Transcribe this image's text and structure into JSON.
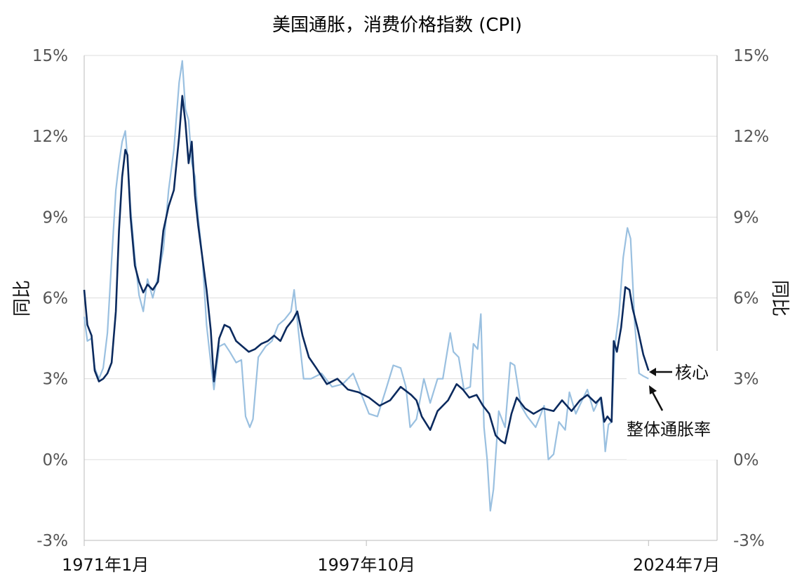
{
  "chart_data": {
    "type": "line",
    "title": "美国通胀，消费价格指数 (CPI)",
    "ylabel_left": "同比",
    "ylabel_right": "同比",
    "ylim": [
      -3,
      15
    ],
    "yticks": [
      "15%",
      "12%",
      "9%",
      "6%",
      "3%",
      "0%",
      "-3%"
    ],
    "ytick_values": [
      15,
      12,
      9,
      6,
      3,
      0,
      -3
    ],
    "xlim": [
      1971.0,
      2031.0
    ],
    "xticks": [
      {
        "label": "1971年1月",
        "value": 1971.0
      },
      {
        "label": "1997年10月",
        "value": 1997.75
      },
      {
        "label": "2024年7月",
        "value": 2024.5
      }
    ],
    "grid": "horizontal",
    "colors": {
      "core": "#0b2a5e",
      "headline": "#9ac0e0",
      "grid": "#dddddd",
      "axis": "#bbbbbb"
    },
    "annotations": [
      {
        "text": "核心",
        "series": "core"
      },
      {
        "text": "整体通胀率",
        "series": "headline"
      }
    ],
    "series": [
      {
        "name": "核心",
        "color": "#0b2a5e",
        "x": [
          1971.0,
          1971.3,
          1971.7,
          1972.0,
          1972.4,
          1972.8,
          1973.2,
          1973.6,
          1974.0,
          1974.3,
          1974.6,
          1974.9,
          1975.1,
          1975.4,
          1975.8,
          1976.2,
          1976.6,
          1977.0,
          1977.5,
          1978.0,
          1978.5,
          1979.0,
          1979.5,
          1980.0,
          1980.3,
          1980.6,
          1980.9,
          1981.2,
          1981.5,
          1981.8,
          1982.2,
          1982.6,
          1983.0,
          1983.3,
          1983.8,
          1984.3,
          1984.8,
          1985.4,
          1986.0,
          1986.6,
          1987.2,
          1987.8,
          1988.4,
          1989.0,
          1989.6,
          1990.2,
          1990.8,
          1991.2,
          1991.7,
          1992.3,
          1993.0,
          1994.0,
          1995.0,
          1996.0,
          1997.0,
          1998.0,
          1999.0,
          2000.0,
          2001.0,
          2002.0,
          2002.5,
          2003.0,
          2003.8,
          2004.5,
          2005.5,
          2006.3,
          2006.9,
          2007.5,
          2008.2,
          2008.8,
          2009.4,
          2010.0,
          2010.5,
          2010.9,
          2011.5,
          2012.0,
          2012.8,
          2013.6,
          2014.5,
          2015.5,
          2016.3,
          2017.2,
          2018.0,
          2018.7,
          2019.5,
          2020.0,
          2020.3,
          2020.6,
          2021.0,
          2021.2,
          2021.5,
          2021.9,
          2022.3,
          2022.7,
          2023.0,
          2023.5,
          2024.0,
          2024.5
        ],
        "y": [
          6.3,
          5.0,
          4.6,
          3.3,
          2.9,
          3.0,
          3.2,
          3.6,
          5.5,
          8.5,
          10.5,
          11.5,
          11.3,
          9.0,
          7.2,
          6.6,
          6.2,
          6.5,
          6.3,
          6.6,
          8.5,
          9.4,
          10.0,
          12.0,
          13.5,
          12.5,
          11.0,
          11.8,
          9.8,
          8.7,
          7.5,
          6.3,
          4.8,
          2.9,
          4.5,
          5.0,
          4.9,
          4.4,
          4.2,
          4.0,
          4.1,
          4.3,
          4.4,
          4.6,
          4.4,
          4.9,
          5.2,
          5.5,
          4.6,
          3.8,
          3.4,
          2.8,
          3.0,
          2.6,
          2.5,
          2.3,
          2.0,
          2.2,
          2.7,
          2.4,
          2.2,
          1.6,
          1.1,
          1.8,
          2.2,
          2.8,
          2.6,
          2.3,
          2.4,
          2.0,
          1.7,
          0.9,
          0.7,
          0.6,
          1.7,
          2.3,
          1.9,
          1.7,
          1.9,
          1.8,
          2.2,
          1.8,
          2.2,
          2.4,
          2.1,
          2.3,
          1.4,
          1.6,
          1.4,
          4.4,
          4.0,
          4.9,
          6.4,
          6.3,
          5.6,
          4.8,
          3.9,
          3.3
        ]
      },
      {
        "name": "整体通胀率",
        "color": "#9ac0e0",
        "x": [
          1971.0,
          1971.3,
          1971.7,
          1972.0,
          1972.4,
          1972.8,
          1973.2,
          1973.6,
          1974.0,
          1974.3,
          1974.6,
          1974.9,
          1975.1,
          1975.4,
          1975.8,
          1976.2,
          1976.6,
          1977.0,
          1977.5,
          1978.0,
          1978.5,
          1979.0,
          1979.5,
          1980.0,
          1980.3,
          1980.6,
          1980.9,
          1981.2,
          1981.5,
          1981.8,
          1982.2,
          1982.6,
          1983.0,
          1983.3,
          1983.8,
          1984.3,
          1984.8,
          1985.4,
          1985.9,
          1986.3,
          1986.7,
          1987.0,
          1987.5,
          1988.2,
          1988.8,
          1989.4,
          1990.0,
          1990.6,
          1990.9,
          1991.3,
          1991.8,
          1992.5,
          1993.5,
          1994.5,
          1995.5,
          1996.5,
          1997.3,
          1998.0,
          1998.8,
          1999.6,
          2000.3,
          2001.0,
          2001.5,
          2001.9,
          2002.5,
          2003.2,
          2003.8,
          2004.5,
          2005.0,
          2005.7,
          2006.0,
          2006.5,
          2007.0,
          2007.6,
          2007.9,
          2008.3,
          2008.6,
          2008.9,
          2009.2,
          2009.5,
          2009.8,
          2010.3,
          2010.9,
          2011.4,
          2011.8,
          2012.4,
          2013.0,
          2013.8,
          2014.6,
          2015.0,
          2015.5,
          2016.0,
          2016.6,
          2017.0,
          2017.6,
          2018.2,
          2018.7,
          2019.3,
          2019.9,
          2020.2,
          2020.4,
          2020.7,
          2021.0,
          2021.3,
          2021.7,
          2022.1,
          2022.5,
          2022.8,
          2023.2,
          2023.6,
          2024.0,
          2024.5
        ],
        "y": [
          5.3,
          4.4,
          4.5,
          3.4,
          3.0,
          3.4,
          4.7,
          7.4,
          10.0,
          11.0,
          11.8,
          12.2,
          11.2,
          9.3,
          7.5,
          6.1,
          5.5,
          6.7,
          6.0,
          6.8,
          7.8,
          10.0,
          11.5,
          14.0,
          14.8,
          13.0,
          12.6,
          11.0,
          10.5,
          9.0,
          7.5,
          5.0,
          3.6,
          2.6,
          4.2,
          4.3,
          4.0,
          3.6,
          3.7,
          1.6,
          1.2,
          1.5,
          3.8,
          4.2,
          4.4,
          5.0,
          5.2,
          5.5,
          6.3,
          4.8,
          3.0,
          3.0,
          3.2,
          2.7,
          2.8,
          3.2,
          2.4,
          1.7,
          1.6,
          2.6,
          3.5,
          3.4,
          2.7,
          1.2,
          1.5,
          3.0,
          2.1,
          3.0,
          3.0,
          4.7,
          4.0,
          3.8,
          2.6,
          2.7,
          4.3,
          4.1,
          5.4,
          1.2,
          0.0,
          -1.9,
          -1.1,
          1.8,
          1.2,
          3.6,
          3.5,
          2.0,
          1.6,
          1.2,
          2.0,
          0.0,
          0.2,
          1.4,
          1.1,
          2.5,
          1.7,
          2.2,
          2.6,
          1.8,
          2.3,
          1.5,
          0.3,
          1.3,
          1.4,
          4.2,
          5.4,
          7.5,
          8.6,
          8.2,
          5.0,
          3.2,
          3.1,
          3.0
        ]
      }
    ]
  }
}
